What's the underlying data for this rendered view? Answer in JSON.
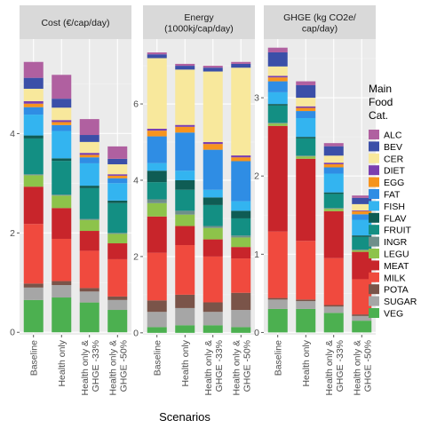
{
  "chart_data": {
    "type": "bar",
    "stacked": true,
    "xlabel": "Scenarios",
    "legend_title": [
      "Main",
      "Food",
      "Cat."
    ],
    "legend_position": "right",
    "categories": [
      "Baseline",
      "Health only",
      "Health only &\nGHGE -33%",
      "Health only &\nGHGE -50%"
    ],
    "series_names": [
      "ALC",
      "BEV",
      "CER",
      "DIET",
      "EGG",
      "FAT",
      "FISH",
      "FLAV",
      "FRUIT",
      "INGR",
      "LEGU",
      "MEAT",
      "MILK",
      "POTA",
      "SUGAR",
      "VEG"
    ],
    "colors": {
      "ALC": "#b060a0",
      "BEV": "#3b4fa8",
      "CER": "#f8e89c",
      "DIET": "#7b3fb0",
      "EGG": "#f7941d",
      "FAT": "#2f8de4",
      "FISH": "#33b4f0",
      "FLAV": "#0f5c54",
      "FRUIT": "#138f83",
      "INGR": "#6e8f8a",
      "LEGU": "#8dc34a",
      "MEAT": "#c8252b",
      "MILK": "#f04a3e",
      "POTA": "#7a5449",
      "SUGAR": "#a6a6a6",
      "VEG": "#4cb050"
    },
    "grid": true,
    "panels": [
      {
        "title": [
          "Cost (€/cap/day)"
        ],
        "ylim": [
          -0.05,
          5.9
        ],
        "yticks": [
          0,
          2,
          4
        ],
        "values": {
          "VEG": [
            0.65,
            0.7,
            0.6,
            0.45
          ],
          "SUGAR": [
            0.25,
            0.25,
            0.22,
            0.2
          ],
          "POTA": [
            0.08,
            0.08,
            0.07,
            0.07
          ],
          "MILK": [
            1.2,
            0.85,
            0.75,
            0.75
          ],
          "MEAT": [
            0.75,
            0.62,
            0.4,
            0.32
          ],
          "LEGU": [
            0.23,
            0.25,
            0.22,
            0.19
          ],
          "INGR": [
            0.02,
            0.02,
            0.02,
            0.02
          ],
          "FRUIT": [
            0.72,
            0.68,
            0.62,
            0.6
          ],
          "FLAV": [
            0.06,
            0.05,
            0.05,
            0.05
          ],
          "FISH": [
            0.42,
            0.55,
            0.45,
            0.35
          ],
          "FAT": [
            0.15,
            0.12,
            0.12,
            0.1
          ],
          "EGG": [
            0.07,
            0.06,
            0.05,
            0.05
          ],
          "DIET": [
            0.05,
            0.04,
            0.04,
            0.03
          ],
          "CER": [
            0.25,
            0.25,
            0.22,
            0.2
          ],
          "BEV": [
            0.22,
            0.18,
            0.14,
            0.11
          ],
          "ALC": [
            0.32,
            0.48,
            0.32,
            0.25
          ]
        }
      },
      {
        "title": [
          "Energy",
          "(1000kj/cap/day)"
        ],
        "ylim": [
          -0.05,
          7.7
        ],
        "yticks": [
          0,
          2,
          4,
          6
        ],
        "values": {
          "VEG": [
            0.15,
            0.2,
            0.2,
            0.15
          ],
          "SUGAR": [
            0.4,
            0.45,
            0.35,
            0.45
          ],
          "POTA": [
            0.3,
            0.35,
            0.25,
            0.45
          ],
          "MILK": [
            1.25,
            1.3,
            1.2,
            0.9
          ],
          "MEAT": [
            0.95,
            0.5,
            0.45,
            0.3
          ],
          "LEGU": [
            0.35,
            0.3,
            0.3,
            0.25
          ],
          "INGR": [
            0.1,
            0.1,
            0.05,
            0.05
          ],
          "FRUIT": [
            0.45,
            0.55,
            0.55,
            0.45
          ],
          "FLAV": [
            0.3,
            0.25,
            0.2,
            0.2
          ],
          "FISH": [
            0.2,
            0.25,
            0.2,
            0.25
          ],
          "FAT": [
            0.7,
            1.0,
            1.05,
            1.05
          ],
          "EGG": [
            0.15,
            0.15,
            0.15,
            0.1
          ],
          "DIET": [
            0.05,
            0.05,
            0.05,
            0.05
          ],
          "CER": [
            1.85,
            1.45,
            1.85,
            2.3
          ],
          "BEV": [
            0.1,
            0.1,
            0.1,
            0.1
          ],
          "ALC": [
            0.05,
            0.05,
            0.05,
            0.05
          ]
        }
      },
      {
        "title": [
          "GHGE (kg CO2e/",
          "cap/day)"
        ],
        "ylim": [
          -0.03,
          3.75
        ],
        "yticks": [
          0,
          1,
          2,
          3
        ],
        "values": {
          "VEG": [
            0.3,
            0.3,
            0.25,
            0.15
          ],
          "SUGAR": [
            0.12,
            0.1,
            0.08,
            0.06
          ],
          "POTA": [
            0.02,
            0.02,
            0.02,
            0.02
          ],
          "MILK": [
            0.85,
            0.75,
            0.6,
            0.45
          ],
          "MEAT": [
            1.35,
            1.05,
            0.6,
            0.35
          ],
          "LEGU": [
            0.03,
            0.03,
            0.03,
            0.02
          ],
          "INGR": [
            0.01,
            0.01,
            0.01,
            0.01
          ],
          "FRUIT": [
            0.22,
            0.22,
            0.18,
            0.16
          ],
          "FLAV": [
            0.02,
            0.02,
            0.02,
            0.02
          ],
          "FISH": [
            0.15,
            0.24,
            0.24,
            0.2
          ],
          "FAT": [
            0.14,
            0.09,
            0.08,
            0.07
          ],
          "EGG": [
            0.05,
            0.04,
            0.04,
            0.04
          ],
          "DIET": [
            0.02,
            0.02,
            0.02,
            0.01
          ],
          "CER": [
            0.12,
            0.11,
            0.09,
            0.08
          ],
          "BEV": [
            0.18,
            0.16,
            0.12,
            0.08
          ],
          "ALC": [
            0.06,
            0.05,
            0.04,
            0.03
          ]
        }
      }
    ]
  }
}
